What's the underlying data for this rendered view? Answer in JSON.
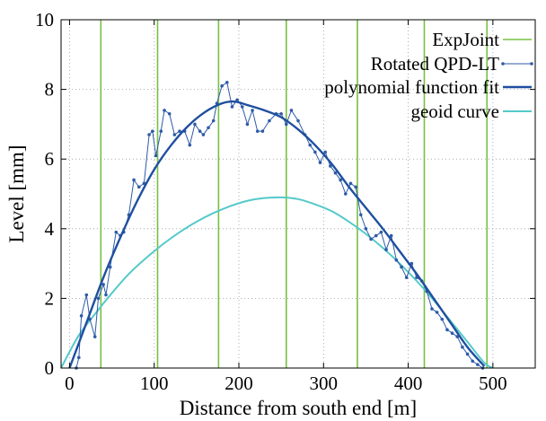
{
  "chart_data": {
    "type": "line",
    "xlabel": "Distance from south end [m]",
    "ylabel": "Level [mm]",
    "xlim": [
      -10,
      550
    ],
    "ylim": [
      0,
      10
    ],
    "x_ticks": [
      0,
      100,
      200,
      300,
      400,
      500
    ],
    "y_ticks": [
      0,
      2,
      4,
      6,
      8,
      10
    ],
    "grid": true,
    "legend_position": "top-right",
    "colors": {
      "joint": "#77c043",
      "qpd": "#2e5aa8",
      "poly": "#1f4f9f",
      "geoid": "#55c9c9",
      "grid": "#999999"
    },
    "legend": [
      {
        "key": "joint",
        "label": "ExpJoint"
      },
      {
        "key": "qpd",
        "label": "Rotated QPD-LT"
      },
      {
        "key": "poly",
        "label": "polynomial function fit"
      },
      {
        "key": "geoid",
        "label": "geoid curve"
      }
    ],
    "series": [
      {
        "key": "joint",
        "name": "ExpJoint",
        "style": "vertical-lines",
        "x": [
          37,
          104,
          176,
          256,
          340,
          419,
          493
        ]
      },
      {
        "key": "qpd",
        "name": "Rotated QPD-LT",
        "style": "line-markers",
        "x": [
          8,
          11,
          14,
          20,
          24,
          30,
          34,
          40,
          43,
          48,
          55,
          60,
          64,
          70,
          76,
          82,
          88,
          94,
          98,
          102,
          108,
          112,
          118,
          124,
          130,
          136,
          142,
          148,
          154,
          158,
          164,
          170,
          174,
          180,
          186,
          192,
          198,
          204,
          210,
          216,
          222,
          228,
          236,
          244,
          250,
          256,
          262,
          270,
          278,
          284,
          290,
          296,
          302,
          308,
          314,
          320,
          326,
          332,
          338,
          344,
          350,
          356,
          362,
          368,
          374,
          380,
          386,
          392,
          398,
          404,
          410,
          416,
          422,
          428,
          434,
          440,
          446,
          452,
          458,
          464,
          470,
          476,
          482,
          488
        ],
        "y": [
          0.0,
          0.3,
          1.5,
          2.1,
          1.4,
          0.9,
          2.0,
          2.4,
          2.1,
          2.9,
          3.9,
          3.8,
          3.9,
          4.4,
          5.4,
          5.2,
          5.3,
          6.7,
          6.8,
          6.1,
          6.8,
          7.4,
          7.3,
          6.7,
          6.8,
          6.8,
          6.4,
          7.0,
          6.8,
          6.7,
          6.9,
          7.1,
          7.6,
          8.1,
          8.2,
          7.5,
          7.7,
          7.5,
          7.0,
          7.4,
          6.8,
          6.8,
          7.1,
          7.3,
          7.3,
          7.0,
          7.4,
          7.1,
          6.7,
          6.4,
          6.2,
          5.9,
          6.2,
          5.8,
          5.6,
          5.4,
          5.0,
          5.3,
          5.2,
          4.4,
          4.0,
          3.7,
          3.8,
          3.9,
          3.4,
          3.8,
          3.1,
          2.9,
          2.6,
          3.0,
          2.6,
          2.5,
          2.2,
          1.7,
          1.6,
          1.4,
          1.1,
          1.0,
          0.9,
          0.6,
          0.4,
          0.2,
          0.1,
          0.0
        ]
      },
      {
        "key": "poly",
        "name": "polynomial function fit",
        "style": "curve",
        "x": [
          0,
          20,
          40,
          60,
          80,
          100,
          120,
          140,
          160,
          180,
          195,
          210,
          230,
          250,
          270,
          290,
          310,
          330,
          350,
          370,
          390,
          410,
          430,
          450,
          470,
          490
        ],
        "y": [
          0.0,
          1.3,
          2.6,
          3.75,
          4.8,
          5.7,
          6.4,
          6.95,
          7.35,
          7.6,
          7.65,
          7.55,
          7.4,
          7.2,
          6.85,
          6.4,
          5.85,
          5.2,
          4.6,
          4.0,
          3.35,
          2.7,
          2.0,
          1.3,
          0.6,
          0.05
        ]
      },
      {
        "key": "geoid",
        "name": "geoid curve",
        "style": "curve",
        "x": [
          -10,
          10,
          30,
          50,
          70,
          90,
          110,
          130,
          150,
          170,
          190,
          210,
          230,
          250,
          270,
          290,
          310,
          330,
          350,
          370,
          390,
          410,
          430,
          450,
          470,
          490,
          500
        ],
        "y": [
          0.0,
          0.9,
          1.55,
          2.15,
          2.7,
          3.15,
          3.55,
          3.9,
          4.2,
          4.45,
          4.65,
          4.8,
          4.88,
          4.9,
          4.85,
          4.7,
          4.5,
          4.2,
          3.85,
          3.45,
          3.0,
          2.5,
          1.95,
          1.35,
          0.75,
          0.15,
          0.0
        ]
      }
    ]
  }
}
